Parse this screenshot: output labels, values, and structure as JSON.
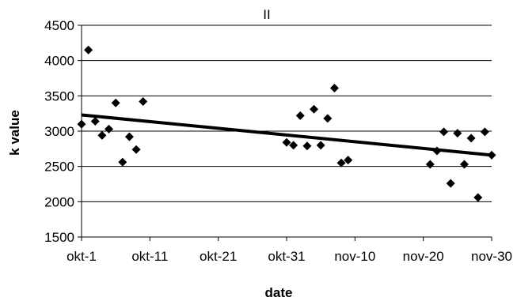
{
  "chart_data": {
    "type": "scatter",
    "title": "II",
    "xlabel": "date",
    "ylabel": "k value",
    "ylim": [
      1500,
      4500
    ],
    "yticks": [
      1500,
      2000,
      2500,
      3000,
      3500,
      4000,
      4500
    ],
    "x_start_label": "okt-1",
    "xticks": [
      "okt-1",
      "okt-11",
      "okt-21",
      "okt-31",
      "nov-10",
      "nov-20",
      "nov-30"
    ],
    "grid": "horizontal",
    "marker": "diamond",
    "points": [
      {
        "x": "okt-1",
        "y": 3100
      },
      {
        "x": "okt-2",
        "y": 4150
      },
      {
        "x": "okt-3",
        "y": 3140
      },
      {
        "x": "okt-4",
        "y": 2940
      },
      {
        "x": "okt-5",
        "y": 3030
      },
      {
        "x": "okt-6",
        "y": 3400
      },
      {
        "x": "okt-7",
        "y": 2560
      },
      {
        "x": "okt-8",
        "y": 2920
      },
      {
        "x": "okt-9",
        "y": 2740
      },
      {
        "x": "okt-10",
        "y": 3420
      },
      {
        "x": "okt-31",
        "y": 2840
      },
      {
        "x": "nov-1",
        "y": 2800
      },
      {
        "x": "nov-2",
        "y": 3220
      },
      {
        "x": "nov-3",
        "y": 2790
      },
      {
        "x": "nov-4",
        "y": 3310
      },
      {
        "x": "nov-5",
        "y": 2800
      },
      {
        "x": "nov-6",
        "y": 3180
      },
      {
        "x": "nov-7",
        "y": 3610
      },
      {
        "x": "nov-8",
        "y": 2550
      },
      {
        "x": "nov-9",
        "y": 2590
      },
      {
        "x": "nov-21",
        "y": 2530
      },
      {
        "x": "nov-22",
        "y": 2720
      },
      {
        "x": "nov-23",
        "y": 2990
      },
      {
        "x": "nov-24",
        "y": 2260
      },
      {
        "x": "nov-25",
        "y": 2970
      },
      {
        "x": "nov-26",
        "y": 2530
      },
      {
        "x": "nov-27",
        "y": 2900
      },
      {
        "x": "nov-28",
        "y": 2060
      },
      {
        "x": "nov-29",
        "y": 2990
      },
      {
        "x": "nov-30",
        "y": 2660
      }
    ],
    "trendline": {
      "type": "linear",
      "x_start": "okt-1",
      "y_start": 3230,
      "x_end": "nov-30",
      "y_end": 2660
    }
  }
}
